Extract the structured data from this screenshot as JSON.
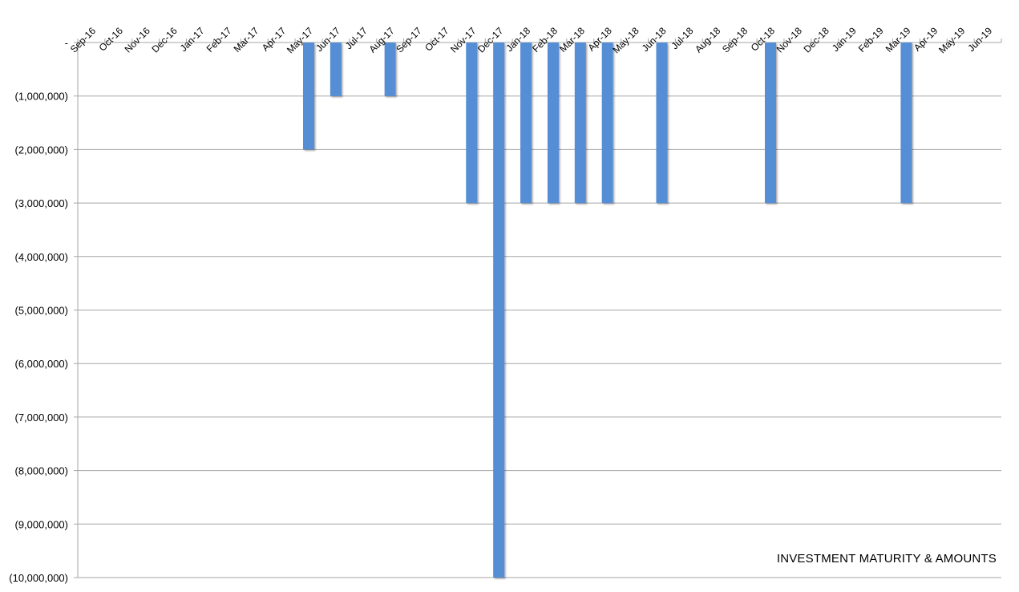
{
  "chart_data": {
    "type": "bar",
    "title": "INVESTMENT MATURITY & AMOUNTS",
    "xlabel": "",
    "ylabel": "",
    "categories": [
      "Sep-16",
      "Oct-16",
      "Nov-16",
      "Dec-16",
      "Jan-17",
      "Feb-17",
      "Mar-17",
      "Apr-17",
      "May-17",
      "Jun-17",
      "Jul-17",
      "Aug-17",
      "Sep-17",
      "Oct-17",
      "Nov-17",
      "Dec-17",
      "Jan-18",
      "Feb-18",
      "Mar-18",
      "Apr-18",
      "May-18",
      "Jun-18",
      "Jul-18",
      "Aug-18",
      "Sep-18",
      "Oct-18",
      "Nov-18",
      "Dec-18",
      "Jan-19",
      "Feb-19",
      "Mar-19",
      "Apr-19",
      "May-19",
      "Jun-19"
    ],
    "values": [
      0,
      0,
      0,
      0,
      0,
      0,
      0,
      0,
      -2000000,
      -1000000,
      0,
      -1000000,
      0,
      0,
      -3000000,
      -10000000,
      -3000000,
      -3000000,
      -3000000,
      -3000000,
      0,
      -3000000,
      0,
      0,
      0,
      -3000000,
      0,
      0,
      0,
      0,
      -3000000,
      0,
      0,
      0
    ],
    "ylim": [
      -10000000,
      0
    ],
    "y_ticks": [
      0,
      -1000000,
      -2000000,
      -3000000,
      -4000000,
      -5000000,
      -6000000,
      -7000000,
      -8000000,
      -9000000,
      -10000000
    ],
    "y_tick_labels": [
      "-",
      "(1,000,000)",
      "(2,000,000)",
      "(3,000,000)",
      "(4,000,000)",
      "(5,000,000)",
      "(6,000,000)",
      "(7,000,000)",
      "(8,000,000)",
      "(9,000,000)",
      "(10,000,000)"
    ],
    "x_axis_position": "top",
    "grid": true,
    "bar_color": "#558ed5",
    "grid_color": "#a6a6a6"
  }
}
